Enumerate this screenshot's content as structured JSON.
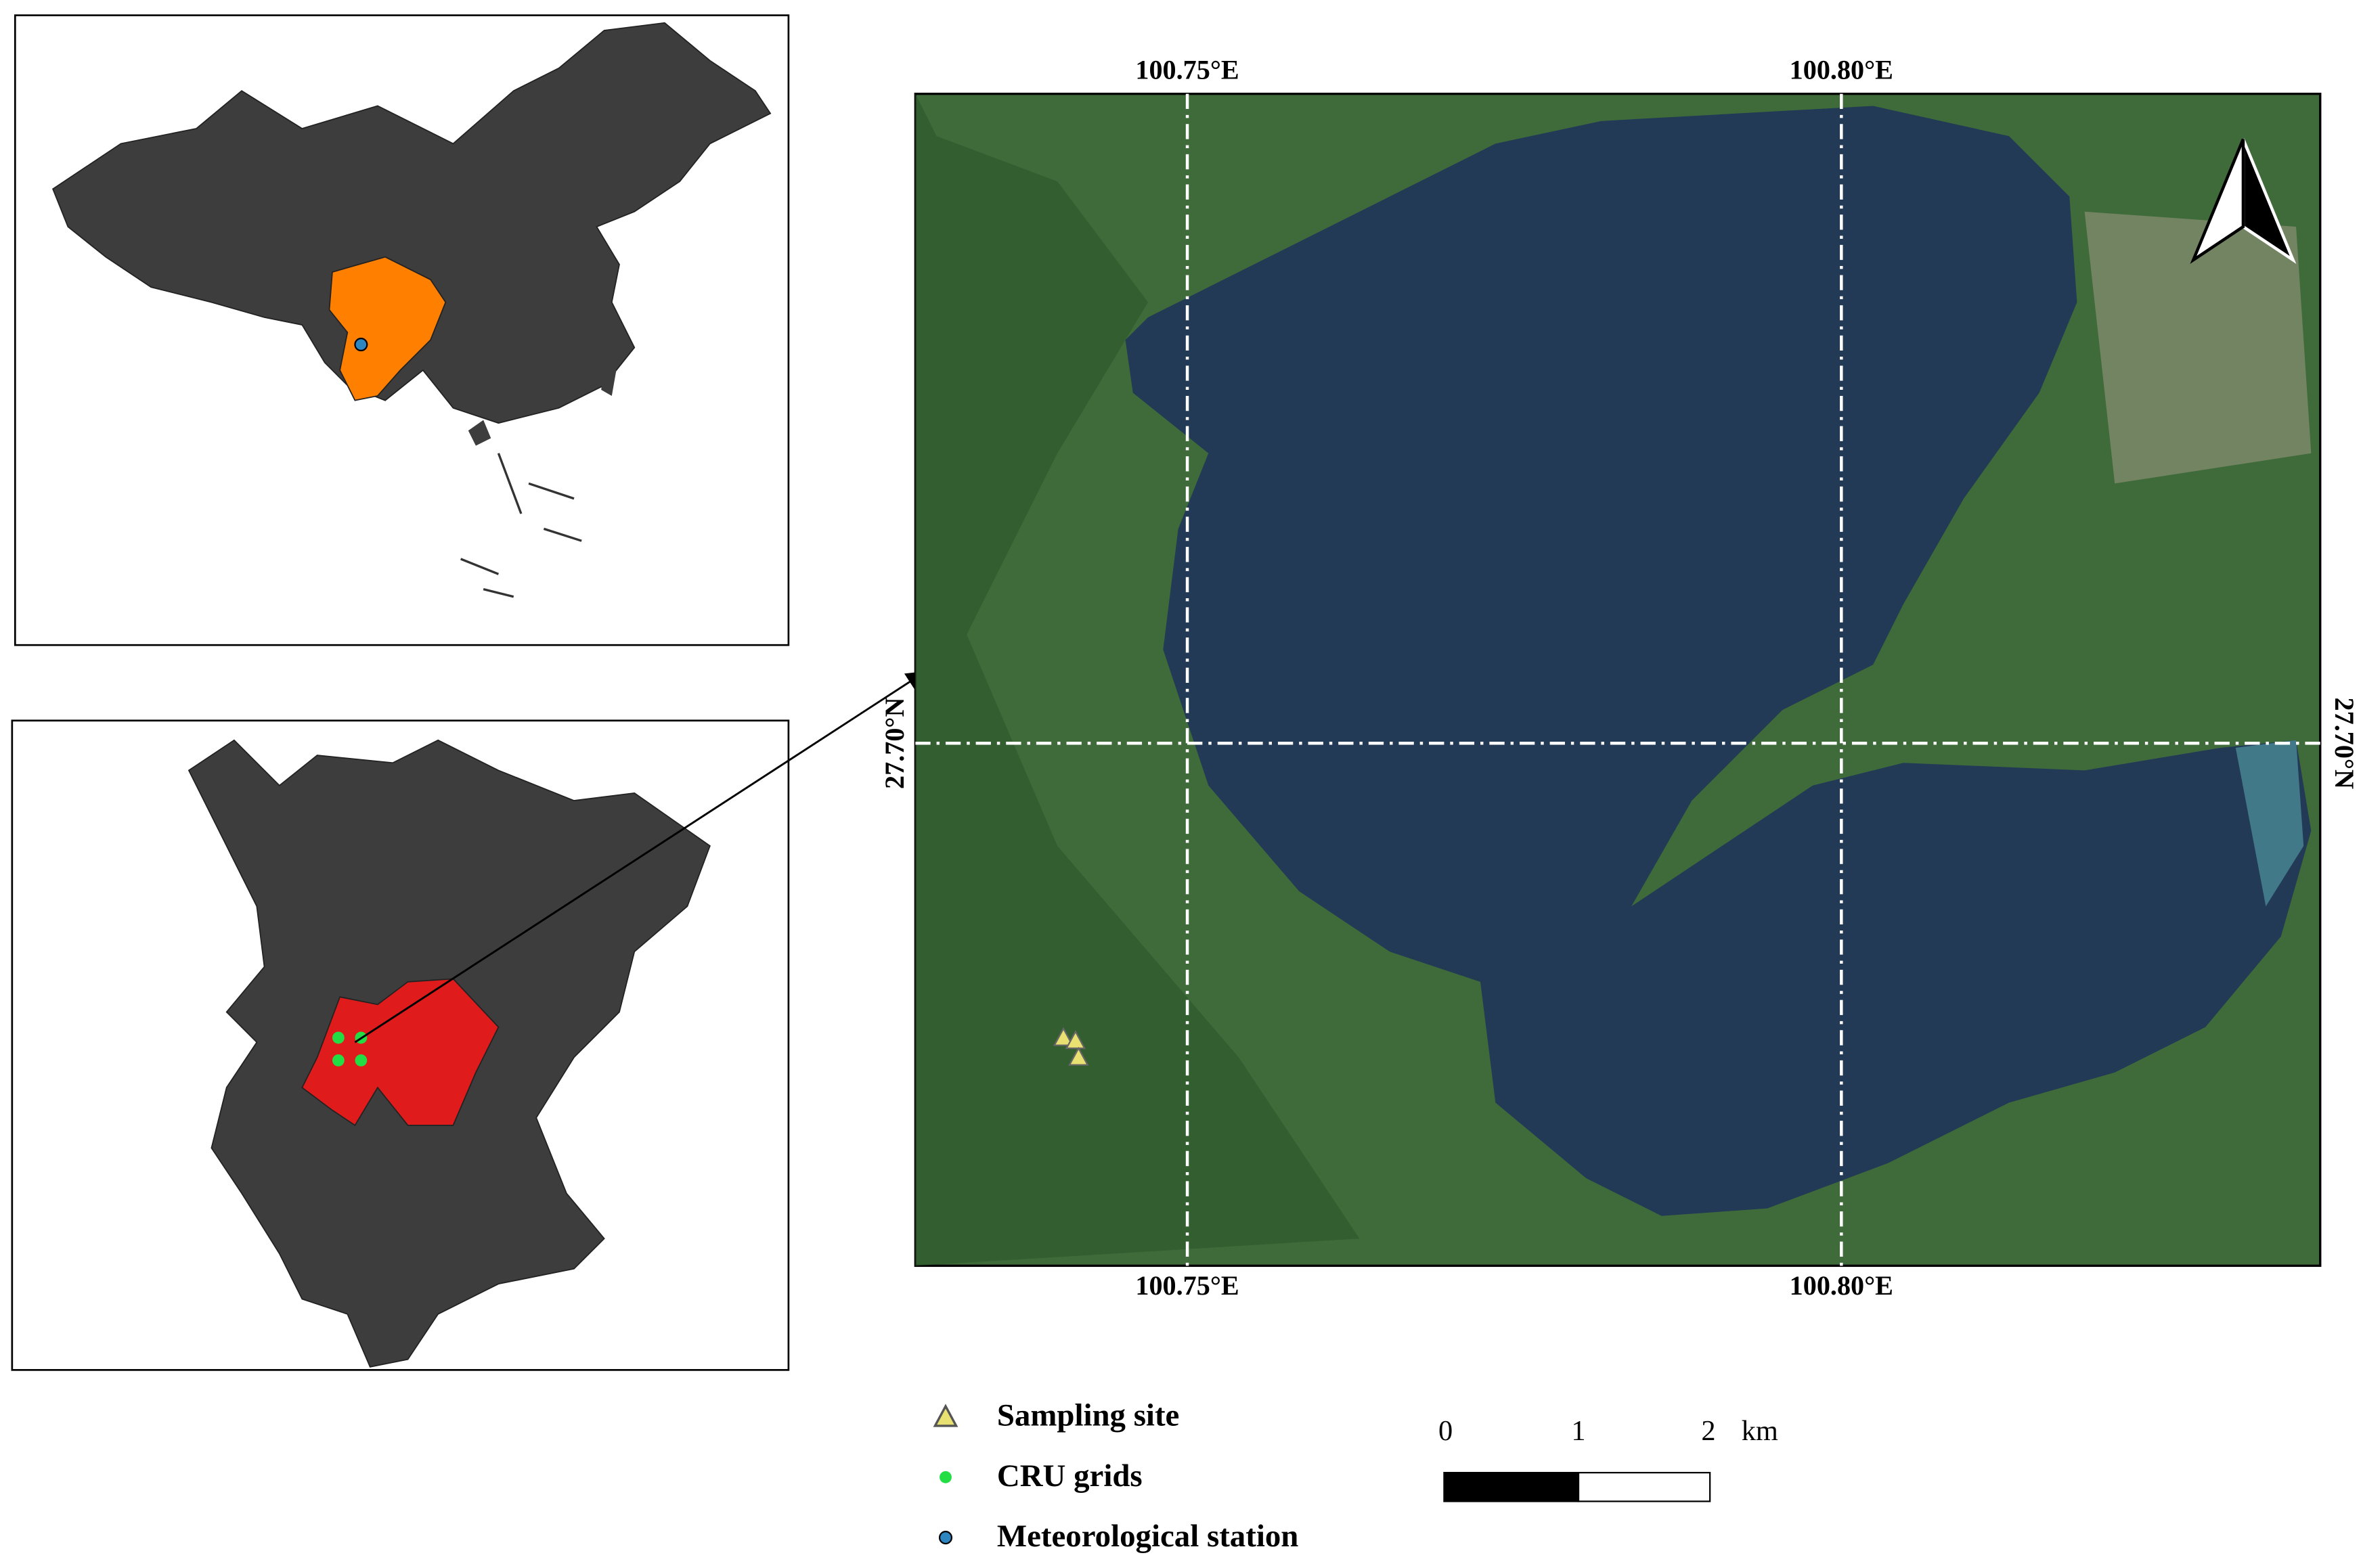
{
  "map": {
    "longitude_labels": [
      "100.75°E",
      "100.80°E"
    ],
    "latitude_label": "27.70°N",
    "legend": [
      "Sampling site",
      "CRU grids",
      "Meteorological station"
    ],
    "scale_bar": {
      "labels": [
        "0",
        "1",
        "2"
      ],
      "unit": "km"
    }
  }
}
